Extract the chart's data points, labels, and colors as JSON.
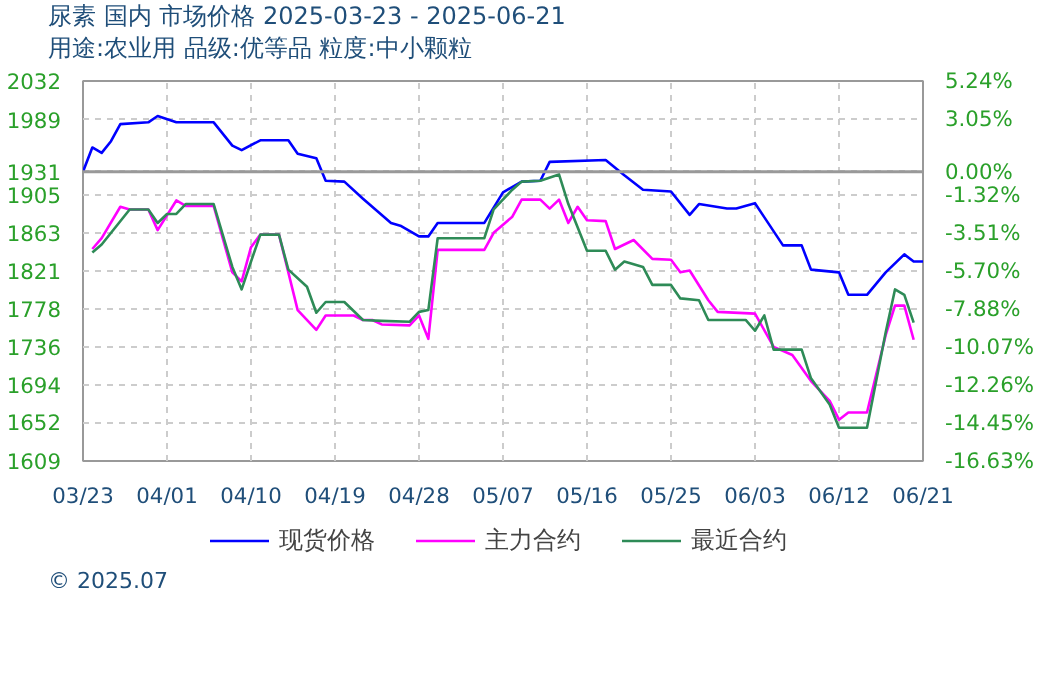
{
  "chart_data": {
    "type": "line",
    "title": "尿素 国内 市场价格 2025-03-23 - 2025-06-21",
    "subtitle": "用途:农业用 品级:优等品 粒度:中小颗粒",
    "annotations": [
      "© 2025.07"
    ],
    "xlim": [
      "2025-03-23",
      "2025-06-21"
    ],
    "xticks": [
      {
        "value": "2025-03-23",
        "label": "03/23"
      },
      {
        "value": "2025-04-01",
        "label": "04/01"
      },
      {
        "value": "2025-04-10",
        "label": "04/10"
      },
      {
        "value": "2025-04-19",
        "label": "04/19"
      },
      {
        "value": "2025-04-28",
        "label": "04/28"
      },
      {
        "value": "2025-05-07",
        "label": "05/07"
      },
      {
        "value": "2025-05-16",
        "label": "05/16"
      },
      {
        "value": "2025-05-25",
        "label": "05/25"
      },
      {
        "value": "2025-06-03",
        "label": "06/03"
      },
      {
        "value": "2025-06-12",
        "label": "06/12"
      },
      {
        "value": "2025-06-21",
        "label": "06/21"
      }
    ],
    "ylim": [
      1609,
      2032
    ],
    "yticks": [
      1609,
      1652,
      1694,
      1736,
      1778,
      1821,
      1863,
      1905,
      1931,
      1989,
      2032
    ],
    "y2lim": [
      -16.63,
      5.24
    ],
    "y2ticks": [
      {
        "value": -16.63,
        "label": "-16.63%"
      },
      {
        "value": -14.45,
        "label": "-14.45%"
      },
      {
        "value": -12.26,
        "label": "-12.26%"
      },
      {
        "value": -10.07,
        "label": "-10.07%"
      },
      {
        "value": -7.88,
        "label": "-7.88%"
      },
      {
        "value": -5.7,
        "label": "-5.70%"
      },
      {
        "value": -3.51,
        "label": "-3.51%"
      },
      {
        "value": -1.32,
        "label": "-1.32%"
      },
      {
        "value": 0,
        "label": "0.00%"
      },
      {
        "value": 3.05,
        "label": "3.05%"
      },
      {
        "value": 5.24,
        "label": "5.24%"
      }
    ],
    "ref_lines": [
      {
        "axis": "y",
        "value": 1931,
        "label": null,
        "color": "#999999"
      }
    ],
    "grid": true,
    "legend": "bottom",
    "marker": "none",
    "line_style": "solid",
    "series": [
      {
        "name": "现货价格",
        "color": "#0000ff",
        "x": [
          "2025-03-23",
          "2025-03-24",
          "2025-03-25",
          "2025-03-26",
          "2025-03-27",
          "2025-03-30",
          "2025-03-31",
          "2025-04-02",
          "2025-04-06",
          "2025-04-08",
          "2025-04-09",
          "2025-04-11",
          "2025-04-14",
          "2025-04-15",
          "2025-04-17",
          "2025-04-18",
          "2025-04-20",
          "2025-04-22",
          "2025-04-25",
          "2025-04-26",
          "2025-04-28",
          "2025-04-29",
          "2025-04-30",
          "2025-05-05",
          "2025-05-07",
          "2025-05-09",
          "2025-05-11",
          "2025-05-12",
          "2025-05-18",
          "2025-05-20",
          "2025-05-22",
          "2025-05-25",
          "2025-05-27",
          "2025-05-28",
          "2025-05-31",
          "2025-06-01",
          "2025-06-03",
          "2025-06-06",
          "2025-06-08",
          "2025-06-09",
          "2025-06-12",
          "2025-06-13",
          "2025-06-15",
          "2025-06-17",
          "2025-06-19",
          "2025-06-20",
          "2025-06-21"
        ],
        "values": [
          1931,
          1958,
          1952,
          1965,
          1984,
          1986,
          1993,
          1986,
          1986,
          1960,
          1955,
          1966,
          1966,
          1951,
          1946,
          1921,
          1920,
          1901,
          1874,
          1871,
          1859,
          1859,
          1874,
          1874,
          1908,
          1920,
          1921,
          1942,
          1944,
          1927,
          1911,
          1909,
          1883,
          1895,
          1890,
          1890,
          1896,
          1849,
          1849,
          1822,
          1819,
          1794,
          1794,
          1819,
          1839,
          1831,
          1831
        ]
      },
      {
        "name": "主力合约",
        "color": "#ff00ff",
        "x": [
          "2025-03-24",
          "2025-03-25",
          "2025-03-27",
          "2025-03-28",
          "2025-03-30",
          "2025-03-31",
          "2025-04-02",
          "2025-04-03",
          "2025-04-06",
          "2025-04-08",
          "2025-04-09",
          "2025-04-10",
          "2025-04-11",
          "2025-04-13",
          "2025-04-15",
          "2025-04-17",
          "2025-04-18",
          "2025-04-21",
          "2025-04-22",
          "2025-04-23",
          "2025-04-24",
          "2025-04-27",
          "2025-04-28",
          "2025-04-29",
          "2025-04-30",
          "2025-05-05",
          "2025-05-06",
          "2025-05-08",
          "2025-05-09",
          "2025-05-11",
          "2025-05-12",
          "2025-05-13",
          "2025-05-14",
          "2025-05-15",
          "2025-05-16",
          "2025-05-18",
          "2025-05-19",
          "2025-05-21",
          "2025-05-23",
          "2025-05-25",
          "2025-05-26",
          "2025-05-27",
          "2025-05-29",
          "2025-05-30",
          "2025-06-03",
          "2025-06-05",
          "2025-06-07",
          "2025-06-09",
          "2025-06-11",
          "2025-06-12",
          "2025-06-13",
          "2025-06-15",
          "2025-06-17",
          "2025-06-18",
          "2025-06-19",
          "2025-06-20"
        ],
        "values": [
          1845,
          1857,
          1892,
          1889,
          1889,
          1866,
          1899,
          1893,
          1893,
          1819,
          1809,
          1847,
          1861,
          1861,
          1777,
          1755,
          1771,
          1771,
          1766,
          1766,
          1761,
          1760,
          1771,
          1745,
          1844,
          1844,
          1863,
          1881,
          1900,
          1900,
          1890,
          1900,
          1874,
          1892,
          1877,
          1876,
          1845,
          1855,
          1834,
          1833,
          1819,
          1821,
          1788,
          1775,
          1773,
          1736,
          1727,
          1698,
          1676,
          1655,
          1663,
          1663,
          1749,
          1782,
          1782,
          1744
        ]
      },
      {
        "name": "最近合约",
        "color": "#2e8b57",
        "x": [
          "2025-03-24",
          "2025-03-25",
          "2025-03-28",
          "2025-03-30",
          "2025-03-31",
          "2025-04-01",
          "2025-04-02",
          "2025-04-03",
          "2025-04-06",
          "2025-04-08",
          "2025-04-09",
          "2025-04-10",
          "2025-04-11",
          "2025-04-13",
          "2025-04-14",
          "2025-04-16",
          "2025-04-17",
          "2025-04-18",
          "2025-04-20",
          "2025-04-22",
          "2025-04-24",
          "2025-04-27",
          "2025-04-28",
          "2025-04-29",
          "2025-04-30",
          "2025-05-05",
          "2025-05-06",
          "2025-05-08",
          "2025-05-09",
          "2025-05-11",
          "2025-05-13",
          "2025-05-14",
          "2025-05-16",
          "2025-05-18",
          "2025-05-19",
          "2025-05-20",
          "2025-05-22",
          "2025-05-23",
          "2025-05-25",
          "2025-05-26",
          "2025-05-28",
          "2025-05-29",
          "2025-06-02",
          "2025-06-03",
          "2025-06-04",
          "2025-06-05",
          "2025-06-08",
          "2025-06-09",
          "2025-06-11",
          "2025-06-12",
          "2025-06-15",
          "2025-06-17",
          "2025-06-18",
          "2025-06-19",
          "2025-06-20"
        ],
        "values": [
          1841,
          1850,
          1889,
          1889,
          1874,
          1884,
          1884,
          1895,
          1895,
          1825,
          1800,
          1831,
          1861,
          1861,
          1822,
          1803,
          1774,
          1786,
          1786,
          1766,
          1765,
          1764,
          1775,
          1777,
          1857,
          1857,
          1889,
          1911,
          1920,
          1921,
          1928,
          1895,
          1843,
          1843,
          1822,
          1831,
          1825,
          1805,
          1805,
          1790,
          1788,
          1766,
          1766,
          1754,
          1771,
          1733,
          1733,
          1701,
          1672,
          1646,
          1646,
          1752,
          1800,
          1794,
          1763
        ]
      }
    ]
  }
}
